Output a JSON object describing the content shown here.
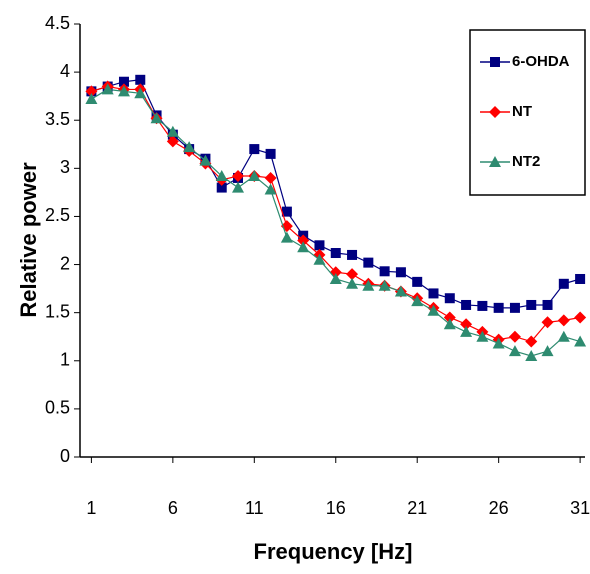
{
  "chart_data": {
    "type": "line",
    "x_label": "Frequency [Hz]",
    "y_label": "Relative power",
    "x": [
      1,
      2,
      3,
      4,
      5,
      6,
      7,
      8,
      9,
      10,
      11,
      12,
      13,
      14,
      15,
      16,
      17,
      18,
      19,
      20,
      21,
      22,
      23,
      24,
      25,
      26,
      27,
      28,
      29,
      30,
      31
    ],
    "series": [
      {
        "name": "6-OHDA",
        "color": "#000080",
        "marker": "square",
        "values": [
          3.8,
          3.85,
          3.9,
          3.92,
          3.55,
          3.35,
          3.2,
          3.1,
          2.8,
          2.9,
          3.2,
          3.15,
          2.55,
          2.3,
          2.2,
          2.12,
          2.1,
          2.02,
          1.93,
          1.92,
          1.82,
          1.7,
          1.65,
          1.58,
          1.57,
          1.55,
          1.55,
          1.58,
          1.58,
          1.8,
          1.85
        ]
      },
      {
        "name": "NT",
        "color": "#ff0000",
        "marker": "diamond",
        "values": [
          3.8,
          3.85,
          3.82,
          3.82,
          3.52,
          3.28,
          3.18,
          3.05,
          2.88,
          2.92,
          2.92,
          2.9,
          2.4,
          2.25,
          2.1,
          1.92,
          1.9,
          1.8,
          1.78,
          1.72,
          1.65,
          1.55,
          1.45,
          1.38,
          1.3,
          1.22,
          1.25,
          1.2,
          1.4,
          1.42,
          1.45
        ]
      },
      {
        "name": "NT2",
        "color": "#2e8b70",
        "marker": "triangle",
        "values": [
          3.72,
          3.82,
          3.8,
          3.78,
          3.52,
          3.38,
          3.22,
          3.08,
          2.92,
          2.8,
          2.92,
          2.78,
          2.28,
          2.18,
          2.05,
          1.85,
          1.8,
          1.78,
          1.78,
          1.72,
          1.62,
          1.52,
          1.38,
          1.3,
          1.25,
          1.18,
          1.1,
          1.05,
          1.1,
          1.25,
          1.2
        ]
      }
    ],
    "xlim": [
      0.3,
      31.3
    ],
    "xticks": [
      1,
      6,
      11,
      16,
      21,
      26,
      31
    ],
    "ylim": [
      0,
      4.5
    ],
    "yticks": [
      0,
      0.5,
      1,
      1.5,
      2,
      2.5,
      3,
      3.5,
      4,
      4.5
    ],
    "legend": "upper right"
  }
}
